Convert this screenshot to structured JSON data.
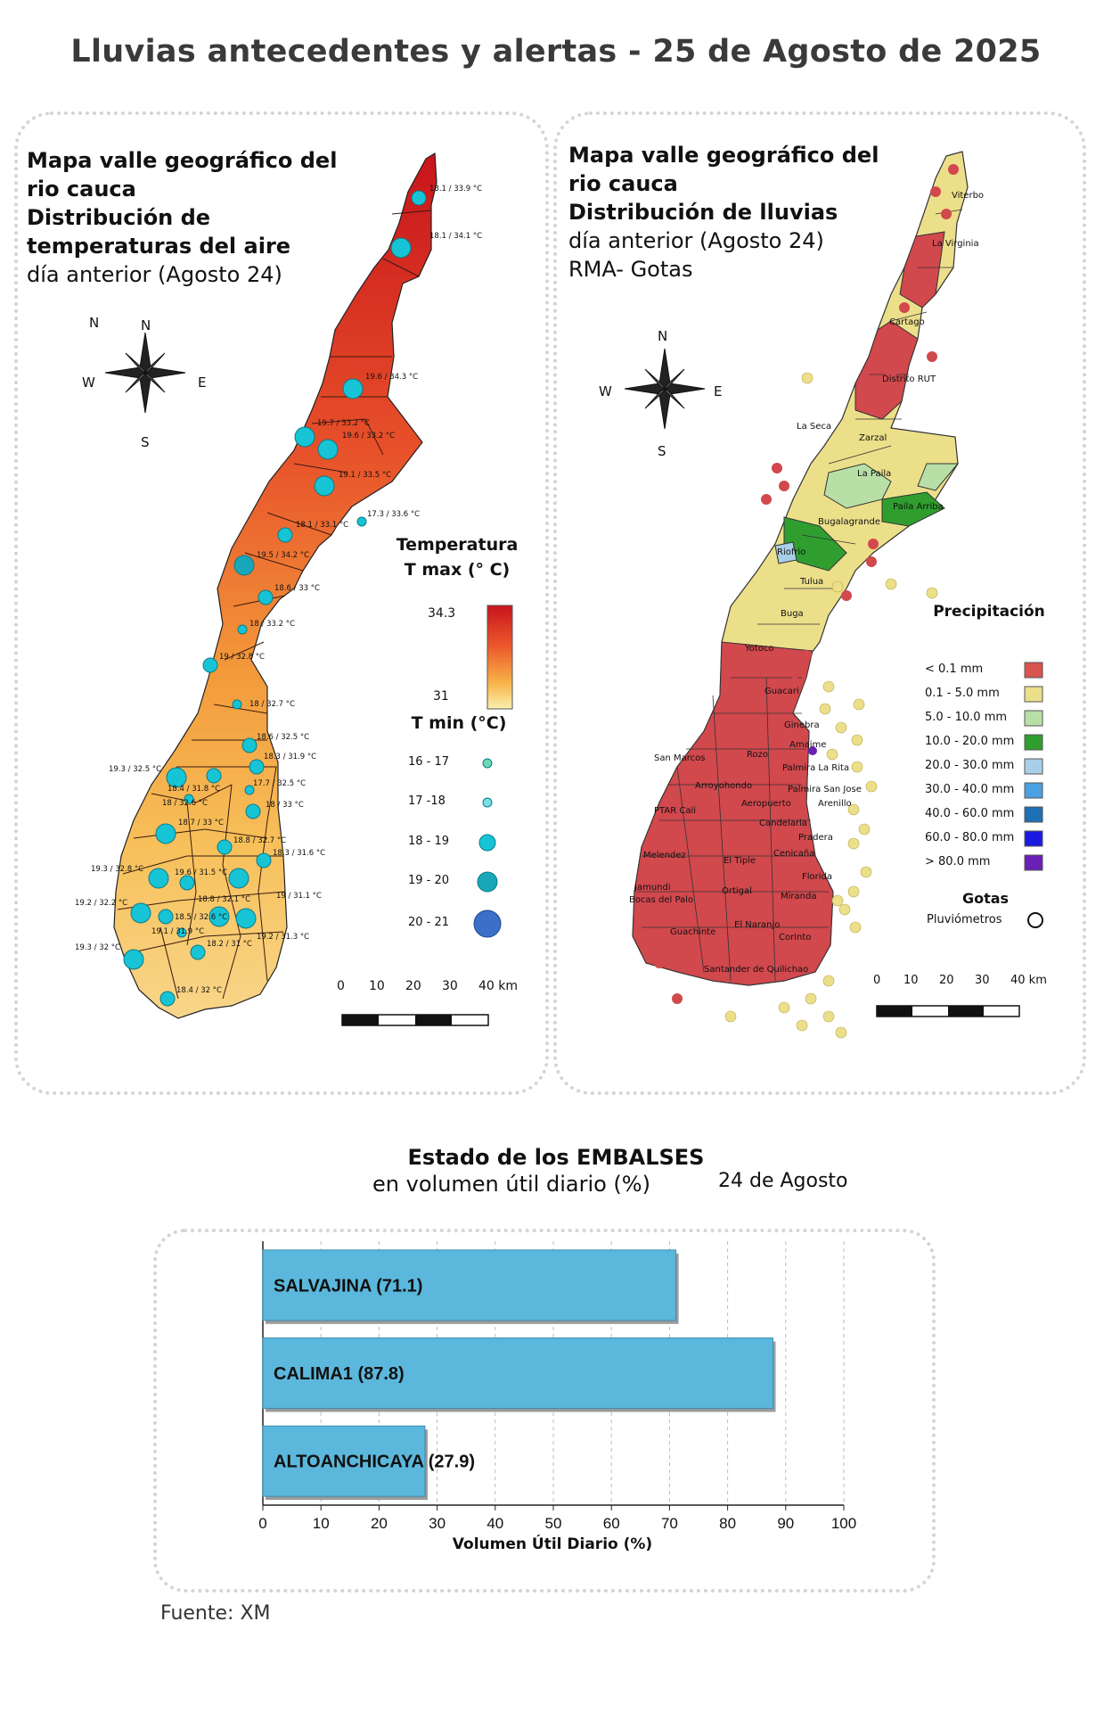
{
  "title": "Lluvias antecedentes y alertas - 25 de Agosto de 2025",
  "left_map": {
    "heading_bold": [
      "Mapa valle geográfico del",
      "rio cauca",
      "Distribución de",
      "temperaturas del aire"
    ],
    "heading_normal": "día anterior (Agosto 24)",
    "compass": {
      "n": "N",
      "s": "S",
      "e": "E",
      "w": "W"
    },
    "legend_tmax_title_1": "Temperatura",
    "legend_tmax_title_2": "T max (° C)",
    "legend_tmax_max": "34.3",
    "legend_tmax_min": "31",
    "legend_tmin_title": "T min (°C)",
    "legend_tmin_items": [
      "16 - 17",
      "17 -18",
      "18 - 19",
      "19 - 20",
      "20 - 21"
    ],
    "scale_labels": [
      "0",
      "10",
      "20",
      "30",
      "40 km"
    ],
    "stations": [
      "18.1 / 33.9 °C",
      "18.1 / 34.1 °C",
      "19.6 / 34.3 °C",
      "19.7 / 33.2 °C",
      "19.6 / 33.2 °C",
      "19.1 / 33.5 °C",
      "17.3 / 33.6 °C",
      "18.1 / 33.1 °C",
      "19.5 / 34.2 °C",
      "18.6 / 33 °C",
      "18 / 33.2 °C",
      "19 / 32.8 °C",
      "18 / 32.7 °C",
      "18.6 / 32.5 °C",
      "18.3 / 31.9 °C",
      "19.3 / 32.5 °C",
      "18.4 / 31.8 °C",
      "17.7 / 32.5 °C",
      "18 / 32.6 °C",
      "18 / 33 °C",
      "18.7 / 33 °C",
      "18.8 / 32.7 °C",
      "18.3 / 31.6 °C",
      "19.3 / 32.8 °C",
      "19.6 / 31.5 °C",
      "19.2 / 32.2 °C",
      "18.8 / 32.1 °C",
      "19 / 31.1 °C",
      "18.5 / 32.6 °C",
      "19.1 / 31.9 °C",
      "19.3 / 32 °C",
      "18.2 / 31 °C",
      "19.2 / 31.3 °C",
      "18.4 / 32 °C"
    ]
  },
  "right_map": {
    "heading_bold_1": [
      "Mapa valle geográfico del",
      "rio cauca"
    ],
    "heading_bold_2": "Distribución de lluvias",
    "heading_normal": [
      "día anterior (Agosto 24)",
      "RMA- Gotas"
    ],
    "compass": {
      "n": "N",
      "s": "S",
      "e": "E",
      "w": "W"
    },
    "legend_title": "Precipitación",
    "legend_items": [
      {
        "label": "< 0.1 mm",
        "color": "#d9534f"
      },
      {
        "label": "0.1 - 5.0 mm",
        "color": "#ecdf8a"
      },
      {
        "label": "5.0 - 10.0 mm",
        "color": "#b8e0a6"
      },
      {
        "label": "10.0 - 20.0 mm",
        "color": "#2f9e2f"
      },
      {
        "label": "20.0 - 30.0 mm",
        "color": "#a9cfe8"
      },
      {
        "label": "30.0 - 40.0 mm",
        "color": "#4aa0e0"
      },
      {
        "label": "40.0 - 60.0 mm",
        "color": "#1f6fb5"
      },
      {
        "label": "60.0 - 80.0 mm",
        "color": "#1a1ae0"
      },
      {
        "label": "> 80.0 mm",
        "color": "#6a1fb5"
      }
    ],
    "gotas_title": "Gotas",
    "gotas_label": "Pluviómetros",
    "scale_labels": [
      "0",
      "10",
      "20",
      "30",
      "40 km"
    ],
    "cities": [
      "Viterbo",
      "La Virginia",
      "Cartago",
      "Distrito RUT",
      "La Seca",
      "Zarzal",
      "La Paila",
      "Paila Arriba",
      "Bugalagrande",
      "Riofrio",
      "Tulua",
      "Buga",
      "Yotoco",
      "Guacari",
      "Ginebra",
      "Amaime",
      "San Marcos",
      "Rozo",
      "Palmira La Rita",
      "Arroyohondo",
      "Palmira San Jose",
      "Aeropuerto",
      "Arenillo",
      "PTAR Cali",
      "Candelaria",
      "Pradera",
      "Melendez",
      "El Tiple",
      "Cenicaña",
      "Jamundi",
      "Bocas del Palo",
      "Ortigal",
      "Florida",
      "Miranda",
      "El Naranjo",
      "Guachinte",
      "Corinto",
      "Santander de Quilichao"
    ]
  },
  "embalses": {
    "heading_bold": "Estado de los EMBALSES",
    "heading_normal": "en volumen útil diario (%)",
    "date": "24 de Agosto",
    "source": "Fuente: XM"
  },
  "chart_data": {
    "type": "bar",
    "orientation": "horizontal",
    "categories": [
      "SALVAJINA (71.1)",
      "CALIMA1 (87.8)",
      "ALTOANCHICAYA (27.9)"
    ],
    "values": [
      71.1,
      87.8,
      27.9
    ],
    "xlabel": "Volumen Útil Diario (%)",
    "ylabel": "",
    "xlim": [
      0,
      100
    ],
    "ticks": [
      0,
      10,
      20,
      30,
      40,
      50,
      60,
      70,
      80,
      90,
      100
    ],
    "grid": "vertical dashed",
    "bar_color": "#5bb8dc"
  }
}
